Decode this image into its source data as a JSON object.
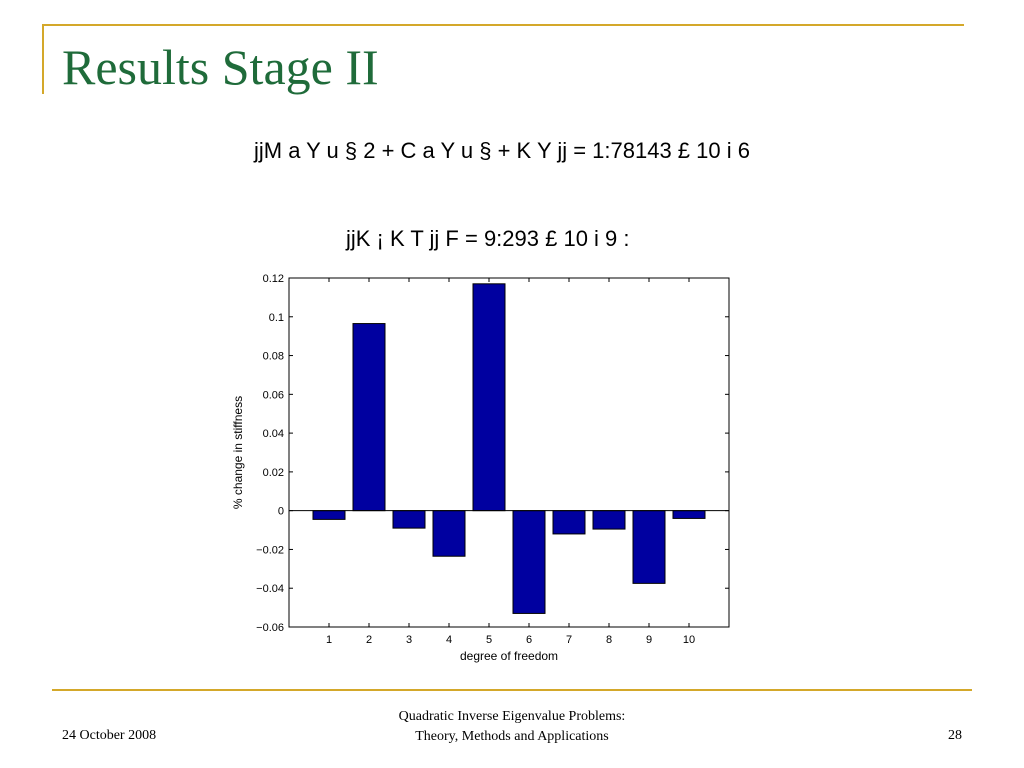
{
  "slide": {
    "title": "Results Stage II",
    "equation_1": "jjM a Y u § 2 + C a Y u § + K Y jj = 1:78143 £ 10 i 6",
    "equation_2": "jjK ¡ K T jj F = 9:293 £ 10 i 9 :",
    "footer_date": "24 October 2008",
    "footer_title_line1": "Quadratic Inverse Eigenvalue Problems:",
    "footer_title_line2": "Theory, Methods and Applications",
    "page_number": "28"
  },
  "colors": {
    "title": "#1f6b3a",
    "rule": "#d4a82a",
    "bar_fill": "#0000a0",
    "bar_edge": "#000000"
  },
  "chart_data": {
    "type": "bar",
    "categories": [
      "1",
      "2",
      "3",
      "4",
      "5",
      "6",
      "7",
      "8",
      "9",
      "10"
    ],
    "values": [
      -0.0045,
      0.0965,
      -0.009,
      -0.0235,
      0.117,
      -0.053,
      -0.012,
      -0.0095,
      -0.0375,
      -0.004
    ],
    "title": "",
    "xlabel": "degree of freedom",
    "ylabel": "% change in stiffness",
    "ylim": [
      -0.06,
      0.12
    ],
    "yticks": [
      "0.12",
      "0.1",
      "0.08",
      "0.06",
      "0.04",
      "0.02",
      "0",
      "−0.02",
      "−0.04",
      "−0.06"
    ],
    "ytick_values": [
      0.12,
      0.1,
      0.08,
      0.06,
      0.04,
      0.02,
      0,
      -0.02,
      -0.04,
      -0.06
    ],
    "xlim": [
      0,
      11
    ],
    "grid": false,
    "legend": "none"
  }
}
